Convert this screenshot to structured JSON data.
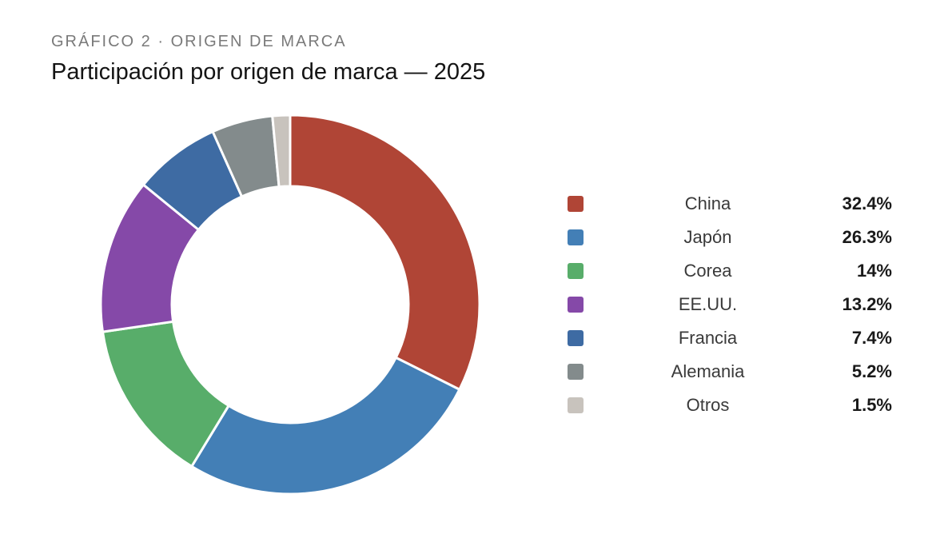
{
  "header": {
    "eyebrow": "GRÁFICO 2 · ORIGEN DE MARCA",
    "title": "Participación por origen de marca — 2025"
  },
  "chart_data": {
    "type": "pie",
    "variant": "donut",
    "title": "Participación por origen de marca — 2025",
    "unit": "%",
    "legend_position": "right",
    "categories": [
      "China",
      "Japón",
      "Corea",
      "EE.UU.",
      "Francia",
      "Alemania",
      "Otros"
    ],
    "values": [
      32.4,
      26.3,
      14,
      13.2,
      7.4,
      5.2,
      1.5
    ],
    "value_labels": [
      "32.4%",
      "26.3%",
      "14%",
      "13.2%",
      "7.4%",
      "5.2%",
      "1.5%"
    ],
    "colors": [
      "#b04536",
      "#437fb6",
      "#58ad6a",
      "#8549a8",
      "#3e6ba3",
      "#838b8c",
      "#c8c3bd"
    ]
  }
}
